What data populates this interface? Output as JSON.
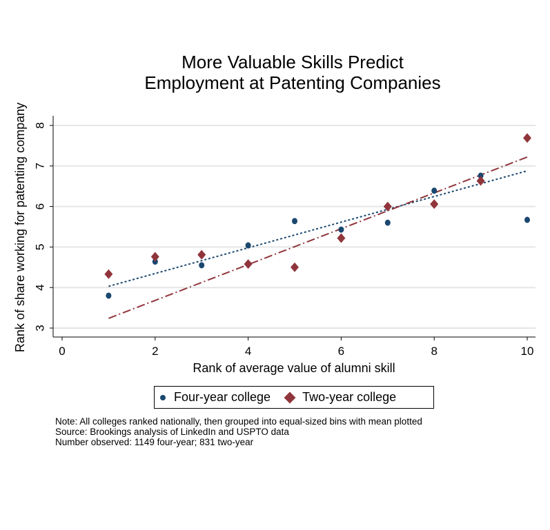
{
  "chart_data": {
    "type": "scatter",
    "title": [
      "More Valuable Skills Predict",
      "Employment at Patenting Companies"
    ],
    "xlabel": "Rank of average value of alumni skill",
    "ylabel": "Rank of share working for patenting company",
    "xlim": [
      0,
      10
    ],
    "ylim": [
      3,
      8
    ],
    "xticks": [
      "0",
      "2",
      "4",
      "6",
      "8",
      "10"
    ],
    "yticks": [
      "3",
      "4",
      "5",
      "6",
      "7",
      "8"
    ],
    "grid": true,
    "legend_position": "bottom",
    "series": [
      {
        "name": "Four-year college",
        "marker": "circle",
        "color": "#1a476f",
        "x": [
          1,
          2,
          3,
          4,
          5,
          6,
          7,
          8,
          9,
          10
        ],
        "y": [
          3.8,
          4.64,
          4.55,
          5.04,
          5.64,
          5.43,
          5.6,
          6.39,
          6.76,
          5.67
        ],
        "fit": {
          "x": [
            1,
            10
          ],
          "y": [
            4.03,
            6.88
          ],
          "style": "dotted"
        }
      },
      {
        "name": "Two-year college",
        "marker": "diamond",
        "color": "#90353b",
        "x": [
          1,
          2,
          3,
          4,
          5,
          6,
          7,
          8,
          9,
          10
        ],
        "y": [
          4.33,
          4.76,
          4.81,
          4.58,
          4.5,
          5.22,
          6.0,
          6.06,
          6.63,
          7.69
        ],
        "fit": {
          "x": [
            1,
            10
          ],
          "y": [
            3.24,
            7.22
          ],
          "style": "dash-dot"
        }
      }
    ],
    "notes": [
      "Note: All colleges ranked nationally, then grouped into equal-sized bins with mean plotted",
      "Source: Brookings analysis of LinkedIn and USPTO data",
      "Number observed: 1149 four-year; 831 two-year"
    ]
  }
}
